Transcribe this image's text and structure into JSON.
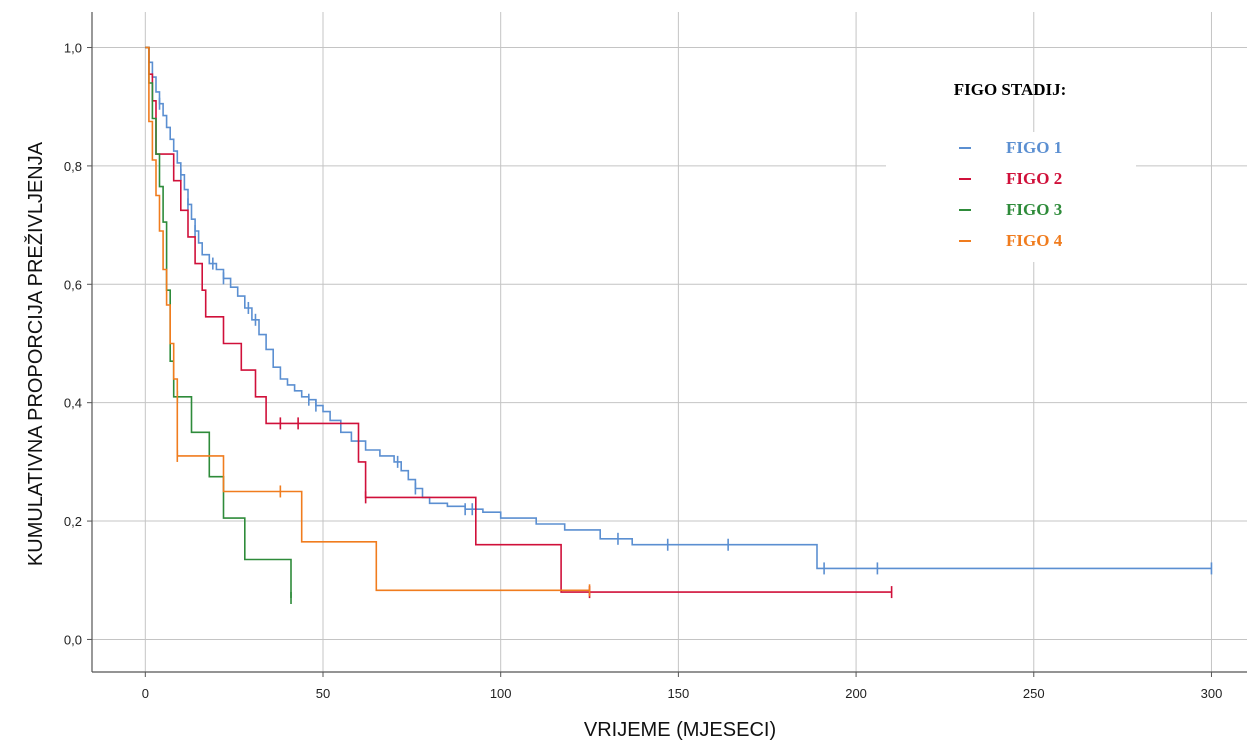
{
  "chart_data": {
    "type": "line",
    "step": true,
    "xlabel": "VRIJEME (MJESECI)",
    "ylabel": "KUMULATIVNA PROPORCIJA PREŽIVLJENJA",
    "xlim": [
      -15,
      310
    ],
    "ylim": [
      -0.055,
      1.06
    ],
    "xticks": [
      0,
      50,
      100,
      150,
      200,
      250,
      300
    ],
    "yticks": [
      0.0,
      0.2,
      0.4,
      0.6,
      0.8,
      1.0
    ],
    "xtick_labels": [
      "0",
      "50",
      "100",
      "150",
      "200",
      "250",
      "300"
    ],
    "ytick_labels": [
      "0,0",
      "0,2",
      "0,4",
      "0,6",
      "0,8",
      "1,0"
    ],
    "grid": true,
    "legend": {
      "title": "FIGO STADIJ:",
      "placement": "top-right"
    },
    "series": [
      {
        "name": "FIGO 1",
        "color": "#5b8fd1",
        "x": [
          0,
          1,
          2,
          3,
          4,
          5,
          6,
          7,
          8,
          9,
          10,
          11,
          12,
          13,
          14,
          15,
          16,
          18,
          20,
          22,
          24,
          26,
          28,
          30,
          32,
          34,
          36,
          38,
          40,
          42,
          44,
          46,
          48,
          50,
          52,
          55,
          58,
          62,
          66,
          70,
          72,
          74,
          76,
          78,
          80,
          85,
          90,
          95,
          100,
          110,
          118,
          128,
          137,
          150,
          170,
          189,
          300
        ],
        "y": [
          1.0,
          0.975,
          0.95,
          0.925,
          0.905,
          0.885,
          0.865,
          0.845,
          0.825,
          0.805,
          0.785,
          0.76,
          0.735,
          0.71,
          0.69,
          0.67,
          0.65,
          0.635,
          0.625,
          0.61,
          0.595,
          0.58,
          0.56,
          0.54,
          0.515,
          0.49,
          0.46,
          0.44,
          0.43,
          0.42,
          0.41,
          0.405,
          0.395,
          0.385,
          0.37,
          0.35,
          0.335,
          0.32,
          0.31,
          0.3,
          0.285,
          0.27,
          0.255,
          0.24,
          0.23,
          0.225,
          0.22,
          0.215,
          0.205,
          0.195,
          0.185,
          0.17,
          0.16,
          0.16,
          0.16,
          0.12,
          0.12
        ],
        "censored": [
          4,
          10,
          12,
          14,
          19,
          22,
          29,
          31,
          46,
          48,
          71,
          76,
          90,
          92,
          133,
          147,
          164,
          191,
          206,
          300
        ]
      },
      {
        "name": "FIGO 2",
        "color": "#d0103a",
        "x": [
          0,
          1,
          2,
          3,
          8,
          10,
          12,
          14,
          16,
          17,
          22,
          27,
          31,
          34,
          37,
          60,
          62,
          93,
          117,
          210
        ],
        "y": [
          1.0,
          0.955,
          0.91,
          0.82,
          0.775,
          0.725,
          0.68,
          0.635,
          0.59,
          0.545,
          0.5,
          0.455,
          0.41,
          0.365,
          0.365,
          0.3,
          0.24,
          0.16,
          0.08,
          0.08
        ],
        "censored": [
          38,
          43,
          62,
          125,
          210
        ]
      },
      {
        "name": "FIGO 3",
        "color": "#2e8b3a",
        "x": [
          0,
          1,
          2,
          3,
          4,
          5,
          6,
          7,
          8,
          13,
          18,
          22,
          28,
          41
        ],
        "y": [
          1.0,
          0.94,
          0.88,
          0.82,
          0.765,
          0.705,
          0.59,
          0.47,
          0.41,
          0.35,
          0.275,
          0.205,
          0.135,
          0.07
        ],
        "censored": [
          9,
          41
        ]
      },
      {
        "name": "FIGO 4",
        "color": "#f07c1e",
        "x": [
          0,
          1,
          2,
          3,
          4,
          5,
          6,
          7,
          8,
          9,
          22,
          44,
          65,
          125
        ],
        "y": [
          1.0,
          0.875,
          0.81,
          0.75,
          0.69,
          0.625,
          0.565,
          0.5,
          0.44,
          0.31,
          0.25,
          0.165,
          0.083,
          0.083
        ],
        "censored": [
          9,
          38,
          125
        ]
      }
    ]
  }
}
